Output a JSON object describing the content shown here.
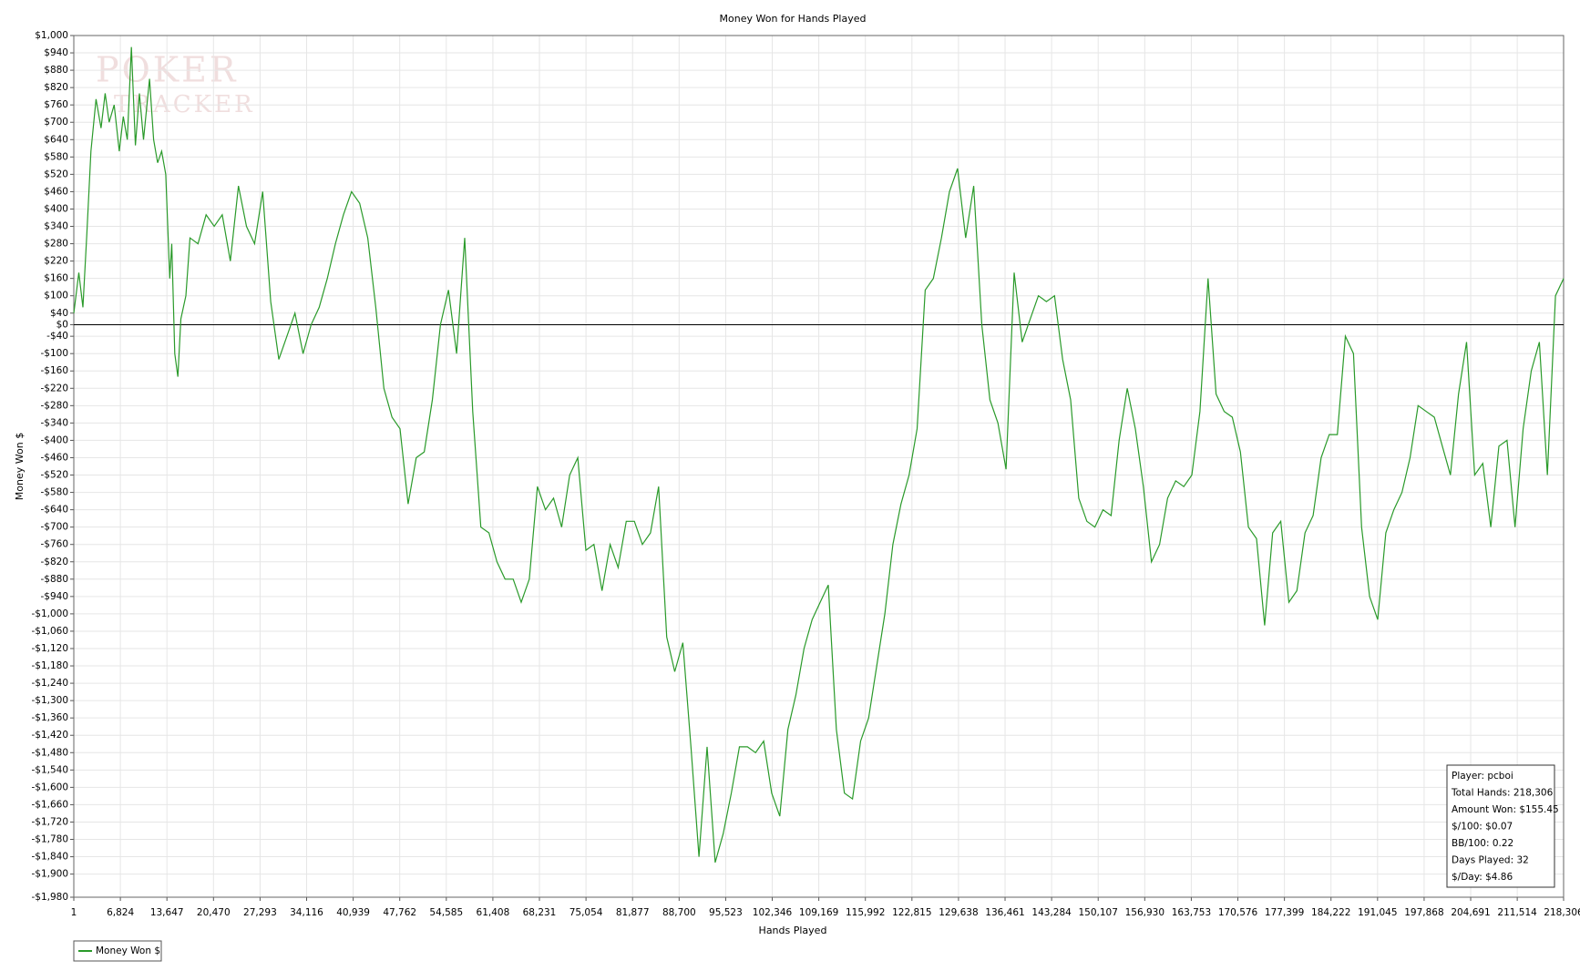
{
  "chart_data": {
    "type": "line",
    "title": "Money Won for Hands Played",
    "x_label": "Hands Played",
    "y_label": "Money Won $",
    "watermark": [
      "POKER",
      "TRACKER"
    ],
    "stats": [
      "Player: pcboi",
      "Total Hands: 218,306",
      "Amount Won: $155.45",
      "$/100: $0.07",
      "BB/100: 0.22",
      "Days Played: 32",
      "$/Day: $4.86"
    ],
    "grid": true,
    "legend": "bottom-left",
    "xlim": [
      1,
      218306
    ],
    "ylim": [
      -1980,
      1000
    ],
    "xticks": [
      1,
      {
        "value": 6824,
        "label": "6,824"
      },
      {
        "value": 13647,
        "label": "13,647"
      },
      {
        "value": 20470,
        "label": "20,470"
      },
      {
        "value": 27293,
        "label": "27,293"
      },
      {
        "value": 34116,
        "label": "34,116"
      },
      {
        "value": 40939,
        "label": "40,939"
      },
      {
        "value": 47762,
        "label": "47,762"
      },
      {
        "value": 54585,
        "label": "54,585"
      },
      {
        "value": 61408,
        "label": "61,408"
      },
      {
        "value": 68231,
        "label": "68,231"
      },
      {
        "value": 75054,
        "label": "75,054"
      },
      {
        "value": 81877,
        "label": "81,877"
      },
      {
        "value": 88700,
        "label": "88,700"
      },
      {
        "value": 95523,
        "label": "95,523"
      },
      {
        "value": 102346,
        "label": "102,346"
      },
      {
        "value": 109169,
        "label": "109,169"
      },
      {
        "value": 115992,
        "label": "115,992"
      },
      {
        "value": 122815,
        "label": "122,815"
      },
      {
        "value": 129638,
        "label": "129,638"
      },
      {
        "value": 136461,
        "label": "136,461"
      },
      {
        "value": 143284,
        "label": "143,284"
      },
      {
        "value": 150107,
        "label": "150,107"
      },
      {
        "value": 156930,
        "label": "156,930"
      },
      {
        "value": 163753,
        "label": "163,753"
      },
      {
        "value": 170576,
        "label": "170,576"
      },
      {
        "value": 177399,
        "label": "177,399"
      },
      {
        "value": 184222,
        "label": "184,222"
      },
      {
        "value": 191045,
        "label": "191,045"
      },
      {
        "value": 197868,
        "label": "197,868"
      },
      {
        "value": 204691,
        "label": "204,691"
      },
      {
        "value": 211514,
        "label": "211,514"
      },
      {
        "value": 218306,
        "label": "218,306"
      }
    ],
    "yticks": [
      {
        "value": 1000,
        "label": "$1,000"
      },
      {
        "value": 940,
        "label": "$940"
      },
      {
        "value": 880,
        "label": "$880"
      },
      {
        "value": 820,
        "label": "$820"
      },
      {
        "value": 760,
        "label": "$760"
      },
      {
        "value": 700,
        "label": "$700"
      },
      {
        "value": 640,
        "label": "$640"
      },
      {
        "value": 580,
        "label": "$580"
      },
      {
        "value": 520,
        "label": "$520"
      },
      {
        "value": 460,
        "label": "$460"
      },
      {
        "value": 400,
        "label": "$400"
      },
      {
        "value": 340,
        "label": "$340"
      },
      {
        "value": 280,
        "label": "$280"
      },
      {
        "value": 220,
        "label": "$220"
      },
      {
        "value": 160,
        "label": "$160"
      },
      {
        "value": 100,
        "label": "$100"
      },
      {
        "value": 40,
        "label": "$40"
      },
      {
        "value": 0,
        "label": "$0"
      },
      {
        "value": -40,
        "label": "-$40"
      },
      {
        "value": -100,
        "label": "-$100"
      },
      {
        "value": -160,
        "label": "-$160"
      },
      {
        "value": -220,
        "label": "-$220"
      },
      {
        "value": -280,
        "label": "-$280"
      },
      {
        "value": -340,
        "label": "-$340"
      },
      {
        "value": -400,
        "label": "-$400"
      },
      {
        "value": -460,
        "label": "-$460"
      },
      {
        "value": -520,
        "label": "-$520"
      },
      {
        "value": -580,
        "label": "-$580"
      },
      {
        "value": -640,
        "label": "-$640"
      },
      {
        "value": -700,
        "label": "-$700"
      },
      {
        "value": -760,
        "label": "-$760"
      },
      {
        "value": -820,
        "label": "-$820"
      },
      {
        "value": -880,
        "label": "-$880"
      },
      {
        "value": -940,
        "label": "-$940"
      },
      {
        "value": -1000,
        "label": "-$1,000"
      },
      {
        "value": -1060,
        "label": "-$1,060"
      },
      {
        "value": -1120,
        "label": "-$1,120"
      },
      {
        "value": -1180,
        "label": "-$1,180"
      },
      {
        "value": -1240,
        "label": "-$1,240"
      },
      {
        "value": -1300,
        "label": "-$1,300"
      },
      {
        "value": -1360,
        "label": "-$1,360"
      },
      {
        "value": -1420,
        "label": "-$1,420"
      },
      {
        "value": -1480,
        "label": "-$1,480"
      },
      {
        "value": -1540,
        "label": "-$1,540"
      },
      {
        "value": -1600,
        "label": "-$1,600"
      },
      {
        "value": -1660,
        "label": "-$1,660"
      },
      {
        "value": -1720,
        "label": "-$1,720"
      },
      {
        "value": -1780,
        "label": "-$1,780"
      },
      {
        "value": -1840,
        "label": "-$1,840"
      },
      {
        "value": -1900,
        "label": "-$1,900"
      },
      {
        "value": -1980,
        "label": "-$1,980"
      }
    ],
    "x": [
      1,
      740,
      1332,
      1924,
      2516,
      3256,
      3996,
      4588,
      5180,
      5920,
      6660,
      7252,
      7844,
      8436,
      9028,
      9620,
      10212,
      11100,
      11692,
      12284,
      12876,
      13468,
      14060,
      14356,
      14800,
      15244,
      15688,
      16428,
      17020,
      18204,
      19388,
      20572,
      21756,
      22940,
      24124,
      25308,
      26492,
      27676,
      28860,
      30044,
      31228,
      32412,
      33596,
      34780,
      35964,
      37148,
      38332,
      39516,
      40700,
      41884,
      43068,
      44252,
      45436,
      46620,
      47804,
      48988,
      50172,
      51356,
      52540,
      53724,
      54908,
      56092,
      57276,
      58460,
      59644,
      60828,
      62012,
      63196,
      64380,
      65564,
      66748,
      67932,
      69116,
      70300,
      71484,
      72668,
      73852,
      75036,
      76220,
      77404,
      78588,
      79772,
      80956,
      82140,
      83324,
      84508,
      85692,
      86876,
      88060,
      89244,
      90428,
      91612,
      92796,
      93980,
      95164,
      96348,
      97532,
      98716,
      99900,
      101084,
      102268,
      103452,
      104636,
      105820,
      107004,
      108188,
      109372,
      110556,
      111740,
      112924,
      114108,
      115292,
      116476,
      117660,
      118844,
      120028,
      121212,
      122396,
      123580,
      124764,
      125948,
      127132,
      128316,
      129500,
      130684,
      131868,
      133052,
      134236,
      135420,
      136604,
      137788,
      138972,
      140156,
      141340,
      142524,
      143708,
      144892,
      146076,
      147260,
      148444,
      149628,
      150812,
      151996,
      153180,
      154364,
      155548,
      156732,
      157916,
      159100,
      160284,
      161468,
      162652,
      163836,
      165020,
      166204,
      167388,
      168572,
      169756,
      170940,
      172124,
      173308,
      174492,
      175676,
      176860,
      178044,
      179228,
      180412,
      181596,
      182780,
      183964,
      185148,
      186332,
      187516,
      188700,
      189884,
      191068,
      192252,
      193436,
      194620,
      195804,
      196988,
      198172,
      199356,
      200540,
      201724,
      202908,
      204092,
      205276,
      206460,
      207644,
      208828,
      210012,
      211196,
      212380,
      213564,
      214748,
      215932,
      217116,
      218306
    ],
    "series": [
      {
        "name": "Money Won $",
        "color": "#2a9a2a",
        "values": [
          40,
          180,
          60,
          320,
          600,
          780,
          680,
          800,
          700,
          760,
          600,
          720,
          640,
          960,
          620,
          800,
          640,
          850,
          640,
          560,
          600,
          520,
          160,
          280,
          -100,
          -180,
          20,
          100,
          300,
          280,
          380,
          340,
          380,
          220,
          480,
          340,
          280,
          460,
          80,
          -120,
          -40,
          40,
          -100,
          0,
          60,
          160,
          280,
          380,
          460,
          420,
          300,
          60,
          -220,
          -320,
          -360,
          -620,
          -460,
          -440,
          -260,
          0,
          120,
          -100,
          300,
          -300,
          -700,
          -720,
          -820,
          -880,
          -880,
          -960,
          -880,
          -560,
          -640,
          -600,
          -700,
          -520,
          -460,
          -780,
          -760,
          -920,
          -760,
          -840,
          -680,
          -680,
          -760,
          -720,
          -560,
          -1080,
          -1200,
          -1100,
          -1460,
          -1840,
          -1460,
          -1860,
          -1760,
          -1620,
          -1460,
          -1460,
          -1480,
          -1440,
          -1620,
          -1700,
          -1400,
          -1280,
          -1120,
          -1020,
          -960,
          -900,
          -1400,
          -1620,
          -1640,
          -1440,
          -1360,
          -1180,
          -1000,
          -760,
          -620,
          -520,
          -360,
          120,
          160,
          300,
          460,
          540,
          300,
          480,
          0,
          -260,
          -340,
          -500,
          180,
          -60,
          20,
          100,
          80,
          100,
          -120,
          -260,
          -600,
          -680,
          -700,
          -640,
          -660,
          -400,
          -220,
          -360,
          -560,
          -820,
          -760,
          -600,
          -540,
          -560,
          -520,
          -300,
          160,
          -240,
          -300,
          -320,
          -440,
          -700,
          -740,
          -1040,
          -720,
          -680,
          -960,
          -920,
          -720,
          -660,
          -460,
          -380,
          -380,
          -40,
          -100,
          -700,
          -940,
          -1020,
          -720,
          -640,
          -580,
          -460,
          -280,
          -300,
          -320,
          -420,
          -520,
          -240,
          -60,
          -520,
          -480,
          -700,
          -420,
          -400,
          -700,
          -360,
          -160,
          -60,
          -520,
          100,
          160
        ]
      }
    ]
  }
}
